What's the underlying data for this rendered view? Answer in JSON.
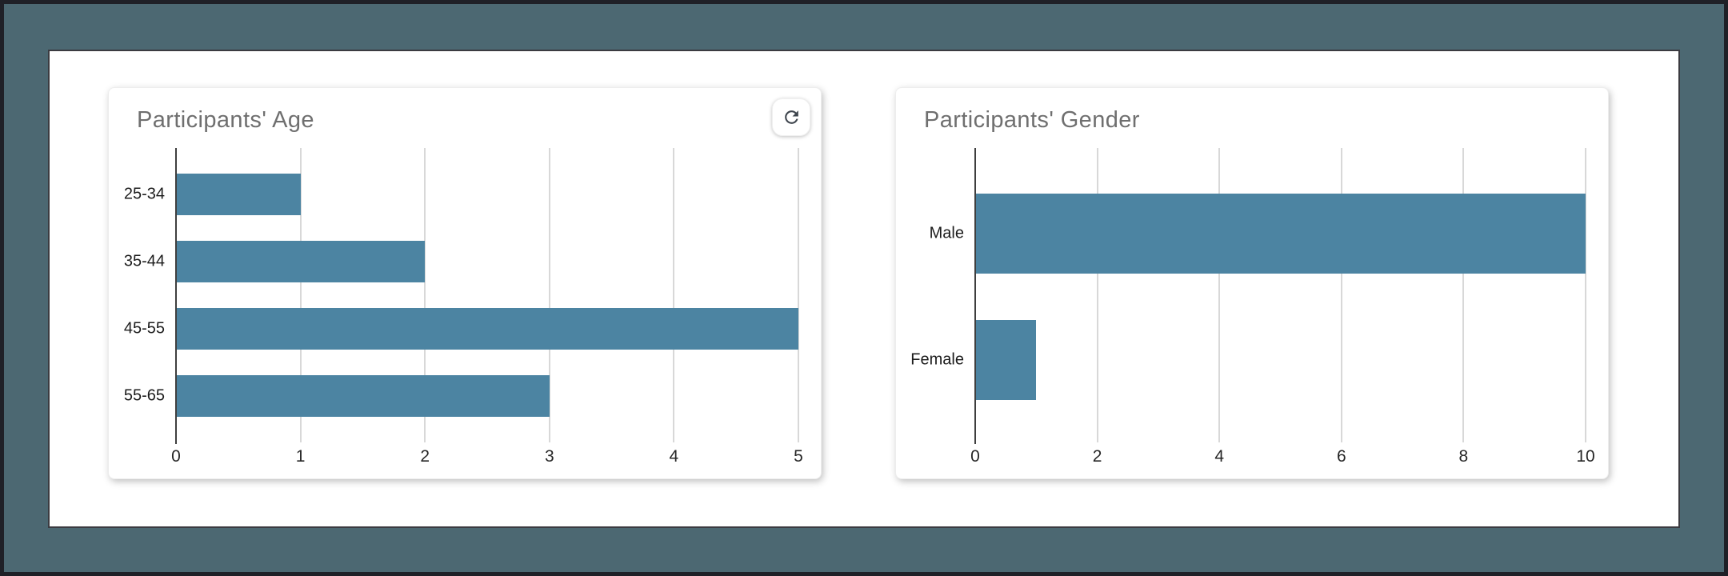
{
  "colors": {
    "bar": "#4c84a2",
    "frame_mat": "#4c6872",
    "outer_border": "#1f2027",
    "panel_border": "#3b3b41",
    "title_text": "#6f6f6f",
    "grid": "#d8d8d8",
    "axis": "#3f3f3f"
  },
  "toolbar": {
    "refresh_icon": "refresh-icon"
  },
  "chart_data": [
    {
      "type": "bar",
      "orientation": "horizontal",
      "title": "Participants' Age",
      "categories": [
        "25-34",
        "35-44",
        "45-55",
        "55-65"
      ],
      "values": [
        1,
        2,
        5,
        3
      ],
      "xlabel": "",
      "ylabel": "",
      "xlim": [
        0,
        5
      ],
      "xticks": [
        0,
        1,
        2,
        3,
        4,
        5
      ],
      "grid": true,
      "legend": false,
      "bar_color": "#4c84a2"
    },
    {
      "type": "bar",
      "orientation": "horizontal",
      "title": "Participants' Gender",
      "categories": [
        "Male",
        "Female"
      ],
      "values": [
        10,
        1
      ],
      "xlabel": "",
      "ylabel": "",
      "xlim": [
        0,
        10
      ],
      "xticks": [
        0,
        2,
        4,
        6,
        8,
        10
      ],
      "grid": true,
      "legend": false,
      "bar_color": "#4c84a2"
    }
  ]
}
